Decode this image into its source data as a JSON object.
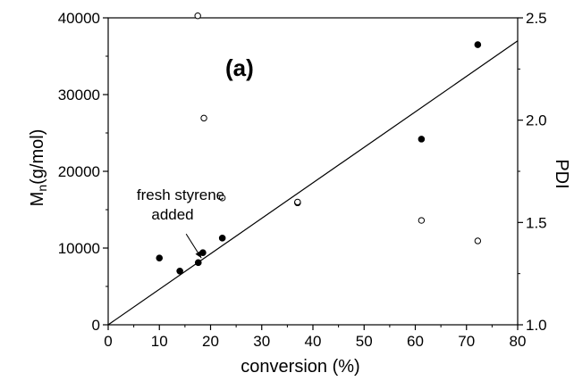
{
  "chart_data": {
    "type": "scatter",
    "panel_label": "(a)",
    "xlabel": "conversion (%)",
    "ylabel_main": "M",
    "ylabel_sub": "n",
    "ylabel_rest": "(g/mol)",
    "y2label": "PDI",
    "xlim": [
      0,
      80
    ],
    "ylim": [
      0,
      40000
    ],
    "y2lim": [
      1.0,
      2.5
    ],
    "x_ticks": [
      "0",
      "10",
      "20",
      "30",
      "40",
      "50",
      "60",
      "70",
      "80"
    ],
    "y_ticks": [
      "0",
      "10000",
      "20000",
      "30000",
      "40000"
    ],
    "y2_ticks": [
      "1.0",
      "1.5",
      "2.0",
      "2.5"
    ],
    "grid": false,
    "series": [
      {
        "axis": "left",
        "marker": "filled-circle",
        "points": [
          {
            "x": 10,
            "y": 8700
          },
          {
            "x": 14,
            "y": 7000
          },
          {
            "x": 17.6,
            "y": 8100
          },
          {
            "x": 18.5,
            "y": 9400
          },
          {
            "x": 22.3,
            "y": 11300
          },
          {
            "x": 37,
            "y": 15900
          },
          {
            "x": 61.2,
            "y": 24200
          },
          {
            "x": 72.2,
            "y": 36500
          }
        ]
      },
      {
        "axis": "right",
        "marker": "open-circle",
        "points": [
          {
            "x": 17.5,
            "y": 2.51
          },
          {
            "x": 18.7,
            "y": 2.01
          },
          {
            "x": 22.3,
            "y": 1.62
          },
          {
            "x": 37,
            "y": 1.6
          },
          {
            "x": 61.2,
            "y": 1.51
          },
          {
            "x": 72.2,
            "y": 1.41
          }
        ]
      },
      {
        "axis": "left",
        "marker": "line",
        "points": [
          {
            "x": 0,
            "y": 0
          },
          {
            "x": 80,
            "y": 37000
          }
        ]
      }
    ],
    "annotation": {
      "line1": "fresh styrene",
      "line2": "added",
      "target_x": 18.2,
      "target_y": 8700
    }
  }
}
